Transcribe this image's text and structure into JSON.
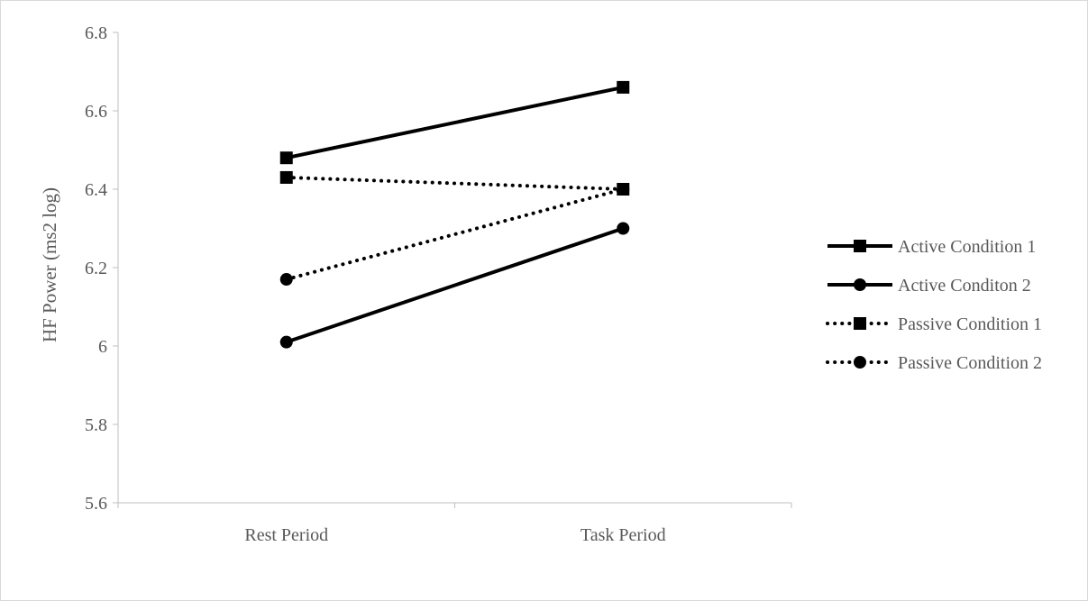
{
  "chart_data": {
    "type": "line",
    "title": "",
    "xlabel": "",
    "ylabel": "HF Power (ms2 log)",
    "categories": [
      "Rest Period",
      "Task Period"
    ],
    "ylim": [
      5.6,
      6.8
    ],
    "yticks": [
      5.6,
      5.8,
      6,
      6.2,
      6.4,
      6.6,
      6.8
    ],
    "grid": false,
    "legend_position": "right",
    "series": [
      {
        "name": "Active Condition 1",
        "values": [
          6.48,
          6.66
        ],
        "line_style": "solid",
        "marker": "square",
        "color": "#000000"
      },
      {
        "name": "Active Conditon 2",
        "values": [
          6.01,
          6.3
        ],
        "line_style": "solid",
        "marker": "circle",
        "color": "#000000"
      },
      {
        "name": "Passive Condition 1",
        "values": [
          6.43,
          6.4
        ],
        "line_style": "dotted",
        "marker": "square",
        "color": "#000000"
      },
      {
        "name": "Passive Condition 2",
        "values": [
          6.17,
          6.4
        ],
        "line_style": "dotted",
        "marker": "circle",
        "color": "#000000"
      }
    ]
  },
  "colors": {
    "axis": "#bfbfbf",
    "text": "#595959",
    "series": "#000000",
    "border": "#d9d9d9"
  }
}
